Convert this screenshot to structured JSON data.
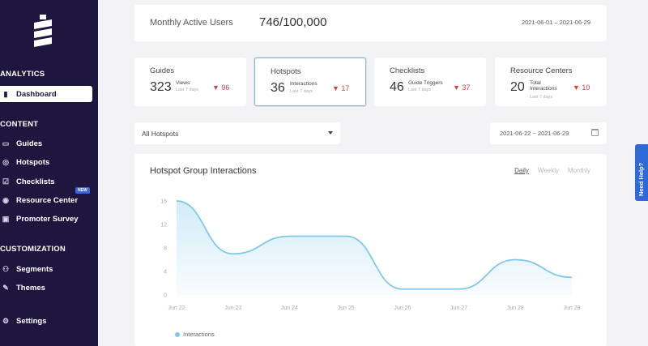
{
  "sidebar": {
    "sections": [
      "ANALYTICS",
      "CONTENT",
      "CUSTOMIZATION"
    ],
    "items": [
      {
        "label": "Dashboard",
        "icon": "bar-chart-icon"
      },
      {
        "label": "Guides",
        "icon": "guide-icon"
      },
      {
        "label": "Hotspots",
        "icon": "hotspot-icon"
      },
      {
        "label": "Checklists",
        "icon": "checklist-icon"
      },
      {
        "label": "Resource Center",
        "icon": "resource-icon",
        "badge": "NEW"
      },
      {
        "label": "Promoter Survey",
        "icon": "survey-icon"
      },
      {
        "label": "Segments",
        "icon": "segments-icon"
      },
      {
        "label": "Themes",
        "icon": "brush-icon"
      },
      {
        "label": "Settings",
        "icon": "gear-icon"
      }
    ]
  },
  "mau": {
    "label": "Monthly Active Users",
    "value": "746/100,000",
    "range": "2021-06-01 – 2021-06-29"
  },
  "stats": [
    {
      "title": "Guides",
      "value": "323",
      "sub": "Views",
      "sub2": "Last 7 days",
      "delta": "96"
    },
    {
      "title": "Hotspots",
      "value": "36",
      "sub": "Interactions",
      "sub2": "Last 7 days",
      "delta": "17"
    },
    {
      "title": "Checklists",
      "value": "46",
      "sub": "Guide Triggers",
      "sub2": "Last 7 days",
      "delta": "37"
    },
    {
      "title": "Resource Centers",
      "value": "20",
      "sub": "Total Interactions",
      "sub2": "Last 7 days",
      "delta": "10"
    }
  ],
  "filter": {
    "selected": "All Hotspots",
    "date_range": "2021-06-22 ~ 2021-06-29"
  },
  "chart": {
    "title": "Hotspot Group Interactions",
    "tabs": [
      "Daily",
      "Weekly",
      "Monthly"
    ],
    "active_tab": "Daily",
    "legend": "Interactions"
  },
  "chart_data": {
    "type": "area",
    "title": "Hotspot Group Interactions",
    "x": [
      "Jun 22",
      "Jun 23",
      "Jun 24",
      "Jun 25",
      "Jun 26",
      "Jun 27",
      "Jun 28",
      "Jun 29"
    ],
    "series": [
      {
        "name": "Interactions",
        "values": [
          16,
          7,
          10,
          10,
          1,
          1,
          6,
          3
        ]
      }
    ],
    "yticks": [
      0,
      4,
      8,
      12,
      16
    ],
    "ylim": [
      0,
      16
    ],
    "grid": false,
    "legend_position": "bottom-left",
    "color": "#7ec8ea"
  },
  "help": {
    "label": "Need Help?"
  }
}
